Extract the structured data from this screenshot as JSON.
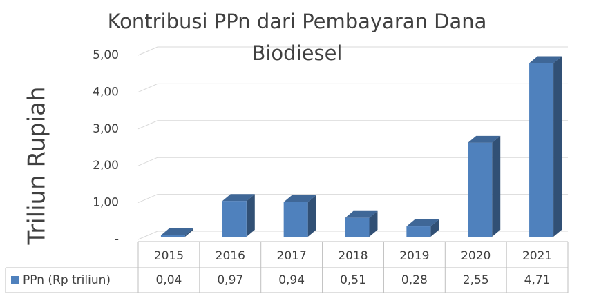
{
  "chart_data": {
    "type": "bar3d",
    "title": "Kontribusi PPn dari Pembayaran Dana Biodiesel",
    "y_label": "Triliun Rupiah",
    "categories": [
      "2015",
      "2016",
      "2017",
      "2018",
      "2019",
      "2020",
      "2021"
    ],
    "series": [
      {
        "name": "PPn (Rp triliun)",
        "color": "#4f81bd",
        "values": [
          0.04,
          0.97,
          0.94,
          0.51,
          0.28,
          2.55,
          4.71
        ],
        "value_labels": [
          "0,04",
          "0,97",
          "0,94",
          "0,51",
          "0,28",
          "2,55",
          "4,71"
        ]
      }
    ],
    "ylim": [
      0,
      5
    ],
    "yticks": [
      {
        "value": 0,
        "label": "-"
      },
      {
        "value": 1,
        "label": "1,00"
      },
      {
        "value": 2,
        "label": "2,00"
      },
      {
        "value": 3,
        "label": "3,00"
      },
      {
        "value": 4,
        "label": "4,00"
      },
      {
        "value": 5,
        "label": "5,00"
      }
    ],
    "grid": true,
    "legend": "table"
  }
}
